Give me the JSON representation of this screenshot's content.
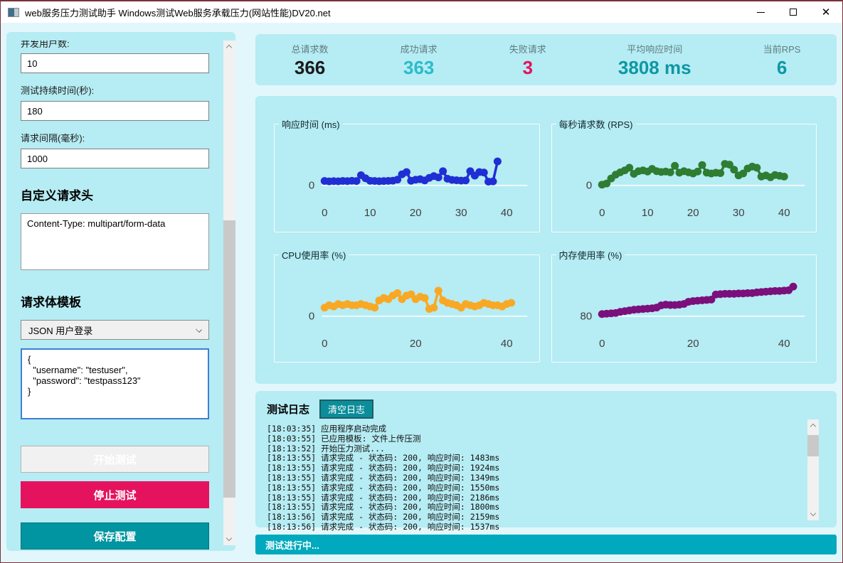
{
  "window": {
    "title": "web服务压力测试助手 Windows测试Web服务承载压力(网站性能)DV20.net"
  },
  "sidebar": {
    "fields": [
      {
        "label": "并发用户数:",
        "value": "10"
      },
      {
        "label": "测试持续时间(秒):",
        "value": "180"
      },
      {
        "label": "请求间隔(毫秒):",
        "value": "1000"
      }
    ],
    "headers_section": {
      "title": "自定义请求头",
      "value": "Content-Type: multipart/form-data"
    },
    "body_section": {
      "title": "请求体模板",
      "template_selected": "JSON 用户登录",
      "body_value": "{\n  \"username\": \"testuser\",\n  \"password\": \"testpass123\"\n}"
    },
    "buttons": {
      "start": "开始测试",
      "stop": "停止测试",
      "save": "保存配置"
    }
  },
  "stats": [
    {
      "label": "总请求数",
      "value": "366",
      "color": "#1a1a1a"
    },
    {
      "label": "成功请求",
      "value": "363",
      "color": "#2bbccb"
    },
    {
      "label": "失败请求",
      "value": "3",
      "color": "#e5125e"
    },
    {
      "label": "平均响应时间",
      "value": "3808 ms",
      "color": "#0e97a4"
    },
    {
      "label": "当前RPS",
      "value": "6",
      "color": "#0e97a4"
    }
  ],
  "chart_data": [
    {
      "type": "line",
      "title": "响应时间 (ms)",
      "color": "#1f2fd4",
      "xticks": [
        0,
        10,
        20,
        30,
        40
      ],
      "yticks": [
        0
      ],
      "xmax": 43,
      "ybase": 0,
      "ytop": 5200,
      "values": [
        500,
        450,
        480,
        460,
        500,
        480,
        520,
        490,
        1150,
        800,
        520,
        500,
        470,
        490,
        510,
        530,
        650,
        1250,
        1500,
        520,
        640,
        700,
        560,
        850,
        1050,
        900,
        1600,
        750,
        620,
        580,
        540,
        560,
        1600,
        1100,
        1500,
        1450,
        420,
        450,
        2700
      ]
    },
    {
      "type": "line",
      "title": "每秒请求数 (RPS)",
      "color": "#2e7d32",
      "xticks": [
        0,
        10,
        20,
        30,
        40
      ],
      "yticks": [
        0
      ],
      "xmax": 43,
      "ybase": 0,
      "ytop": 12,
      "values": [
        0.2,
        0.5,
        1.8,
        2.8,
        3.4,
        3.9,
        4.6,
        3.0,
        3.7,
        3.9,
        3.6,
        4.3,
        3.7,
        3.5,
        3.6,
        3.4,
        5.1,
        3.3,
        3.7,
        3.4,
        3.1,
        3.6,
        5.3,
        3.3,
        3.1,
        3.3,
        3.2,
        5.6,
        5.4,
        4.1,
        2.6,
        3.1,
        4.4,
        4.9,
        4.6,
        2.3,
        2.6,
        2.1,
        2.7,
        2.5,
        2.3
      ]
    },
    {
      "type": "line",
      "title": "CPU使用率 (%)",
      "color": "#f9a825",
      "xticks": [
        0,
        20,
        40
      ],
      "yticks": [
        0
      ],
      "xmax": 43,
      "ybase": 0,
      "ytop": 38,
      "values": [
        7,
        9,
        8,
        10,
        9,
        10,
        9,
        9,
        10,
        9,
        8,
        7,
        13,
        15,
        14,
        17,
        19,
        14,
        17,
        18,
        14,
        16,
        15,
        6,
        7,
        21,
        13,
        11,
        10,
        9,
        7,
        10,
        9,
        8,
        9,
        11,
        10,
        9,
        9,
        8,
        10,
        11
      ]
    },
    {
      "type": "line",
      "title": "内存使用率 (%)",
      "color": "#7b0f7b",
      "xticks": [
        0,
        20,
        40
      ],
      "yticks": [
        80
      ],
      "xmax": 43,
      "ybase": 80,
      "ytop": 86.4,
      "values": [
        80.3,
        80.35,
        80.4,
        80.45,
        80.6,
        80.7,
        80.8,
        80.9,
        80.95,
        81.0,
        81.05,
        81.1,
        81.2,
        81.5,
        81.6,
        81.55,
        81.55,
        81.6,
        81.7,
        82.0,
        82.1,
        82.15,
        82.2,
        82.25,
        82.3,
        83.0,
        83.05,
        83.1,
        83.1,
        83.1,
        83.15,
        83.15,
        83.2,
        83.2,
        83.3,
        83.35,
        83.4,
        83.45,
        83.5,
        83.5,
        83.55,
        83.6,
        84.1
      ]
    }
  ],
  "log": {
    "title": "测试日志",
    "clear_button": "清空日志",
    "entries": [
      "[18:03:35] 应用程序启动完成",
      "[18:03:55] 已应用模板: 文件上传压测",
      "[18:13:52] 开始压力测试...",
      "[18:13:55] 请求完成 - 状态码: 200, 响应时间: 1483ms",
      "[18:13:55] 请求完成 - 状态码: 200, 响应时间: 1924ms",
      "[18:13:55] 请求完成 - 状态码: 200, 响应时间: 1349ms",
      "[18:13:55] 请求完成 - 状态码: 200, 响应时间: 1550ms",
      "[18:13:55] 请求完成 - 状态码: 200, 响应时间: 2186ms",
      "[18:13:55] 请求完成 - 状态码: 200, 响应时间: 1800ms",
      "[18:13:56] 请求完成 - 状态码: 200, 响应时间: 2159ms",
      "[18:13:56] 请求完成 - 状态码: 200, 响应时间: 1537ms"
    ]
  },
  "status_bar": {
    "text": "测试进行中..."
  }
}
